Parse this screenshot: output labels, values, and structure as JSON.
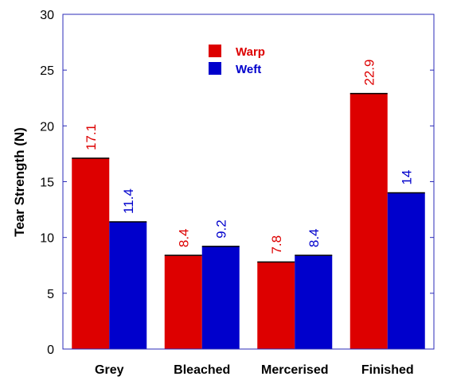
{
  "chart_data": {
    "type": "bar",
    "title": "",
    "xlabel": "",
    "ylabel": "Tear Strength (N)",
    "ylim": [
      0,
      30
    ],
    "yticks": [
      "0",
      "5",
      "10",
      "15",
      "20",
      "25",
      "30"
    ],
    "categories": [
      "Grey",
      "Bleached",
      "Mercerised",
      "Finished"
    ],
    "series": [
      {
        "name": "Warp",
        "color": "#dd0000",
        "values": [
          17.1,
          8.4,
          7.8,
          22.9
        ],
        "labels": [
          "17.1",
          "8.4",
          "7.8",
          "22.9"
        ]
      },
      {
        "name": "Weft",
        "color": "#0000cc",
        "values": [
          11.4,
          9.2,
          8.4,
          14
        ],
        "labels": [
          "11.4",
          "9.2",
          "8.4",
          "14"
        ]
      }
    ],
    "legend_position": "top-center",
    "grid": false,
    "frame_color": "#2b2bb8"
  }
}
